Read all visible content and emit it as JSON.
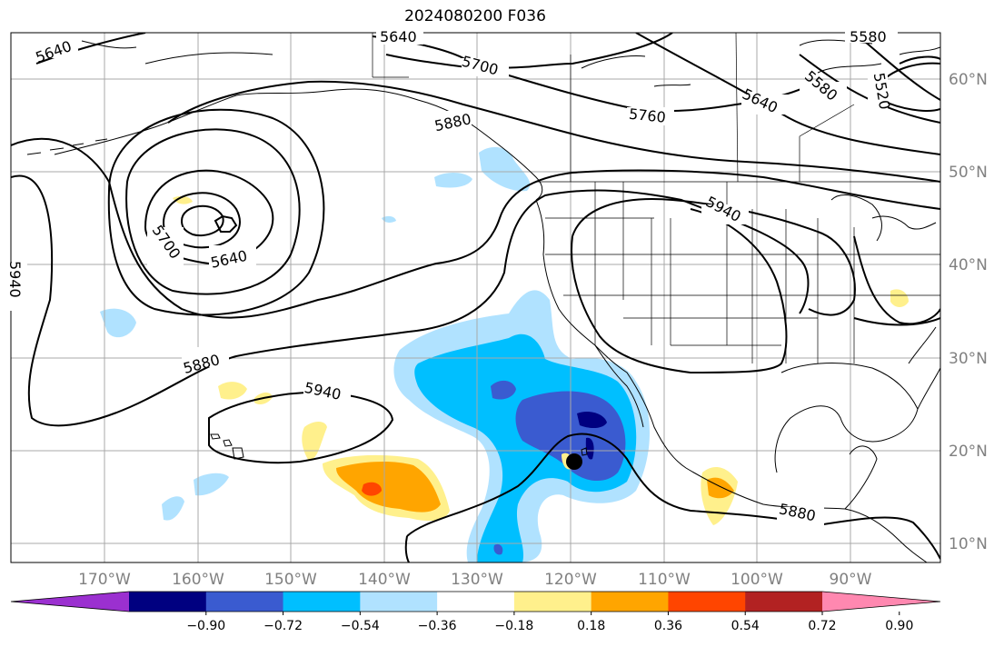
{
  "title": "2024080200 F036",
  "map": {
    "lat_labels": [
      "60°N",
      "50°N",
      "40°N",
      "30°N",
      "20°N",
      "10°N"
    ],
    "lon_labels": [
      "170°W",
      "160°W",
      "150°W",
      "140°W",
      "130°W",
      "120°W",
      "110°W",
      "100°W",
      "90°W"
    ],
    "contour_labels": [
      "5640",
      "5640",
      "5700",
      "5760",
      "5640",
      "5580",
      "5520",
      "5880",
      "5700",
      "5640",
      "5940",
      "5940",
      "5880",
      "5940",
      "5880",
      "5580"
    ],
    "storm_marker": {
      "lat": 18.8,
      "lon": -119.2
    }
  },
  "colorbar": {
    "tick_labels": [
      "−0.90",
      "−0.72",
      "−0.54",
      "−0.36",
      "−0.18",
      "0.18",
      "0.36",
      "0.54",
      "0.72",
      "0.90"
    ],
    "colors": [
      "#9b30d0",
      "#000080",
      "#3a5bd0",
      "#00bfff",
      "#b0e2ff",
      "#ffffff",
      "#fff08c",
      "#ffa500",
      "#ff4500",
      "#b22222",
      "#ff88b0"
    ]
  }
}
